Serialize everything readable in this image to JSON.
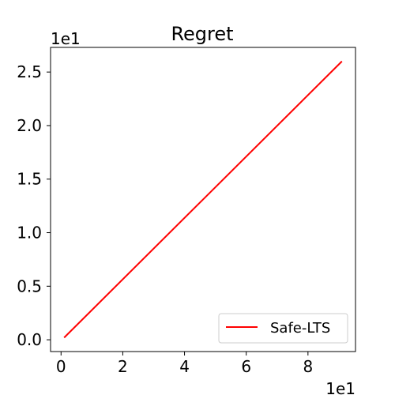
{
  "chart_data": {
    "type": "line",
    "title": "Regret",
    "xlabel": "",
    "ylabel": "",
    "x_scale_label": "1e1",
    "y_scale_label": "1e1",
    "xlim": [
      -0.34,
      9.54
    ],
    "ylim": [
      -0.11,
      2.73
    ],
    "x_ticks": [
      0,
      2,
      4,
      6,
      8
    ],
    "x_tick_labels": [
      "0",
      "2",
      "4",
      "6",
      "8"
    ],
    "y_ticks": [
      0.0,
      0.5,
      1.0,
      1.5,
      2.0,
      2.5
    ],
    "y_tick_labels": [
      "0.0",
      "0.5",
      "1.0",
      "1.5",
      "2.0",
      "2.5"
    ],
    "grid": false,
    "legend_position": "lower-right",
    "series": [
      {
        "name": "Safe-LTS",
        "color": "#ff0000",
        "x": [
          0.1,
          9.1
        ],
        "y": [
          0.02,
          2.6
        ]
      }
    ]
  }
}
